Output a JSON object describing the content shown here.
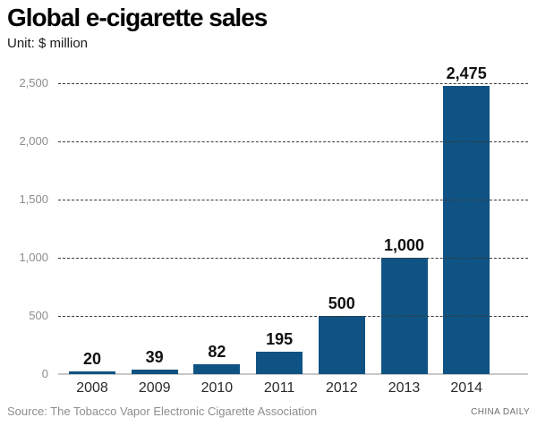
{
  "header": {
    "title": "Global e-cigarette sales",
    "unit_label": "Unit: $ million"
  },
  "chart_data": {
    "type": "bar",
    "title": "Global e-cigarette sales",
    "ylabel": "Unit: $ million",
    "xlabel": "",
    "categories": [
      "2008",
      "2009",
      "2010",
      "2011",
      "2012",
      "2013",
      "2014"
    ],
    "values": [
      20,
      39,
      82,
      195,
      500,
      1000,
      2475
    ],
    "value_labels": [
      "20",
      "39",
      "82",
      "195",
      "500",
      "1,000",
      "2,475"
    ],
    "ylim": [
      0,
      2500
    ],
    "y_ticks": [
      0,
      500,
      1000,
      1500,
      2000,
      2500
    ],
    "y_tick_labels": [
      "0",
      "500",
      "1,000",
      "1,500",
      "2,000",
      "2,500"
    ],
    "grid": "horizontal-dashed",
    "legend": "none",
    "bar_color": "#0f5384"
  },
  "footer": {
    "source": "Source: The Tobacco Vapor Electronic Cigarette Association",
    "credit": "CHINA DAILY"
  },
  "colors": {
    "bar": "#0f5384",
    "gridline": "#3a3a3a",
    "baseline": "#c7c7c7",
    "tick_label": "#8c8c8c",
    "year_label": "#2b2b2b",
    "value_label": "#111111",
    "title": "#000000",
    "source": "#8e8e8e",
    "credit": "#6e6e73"
  }
}
